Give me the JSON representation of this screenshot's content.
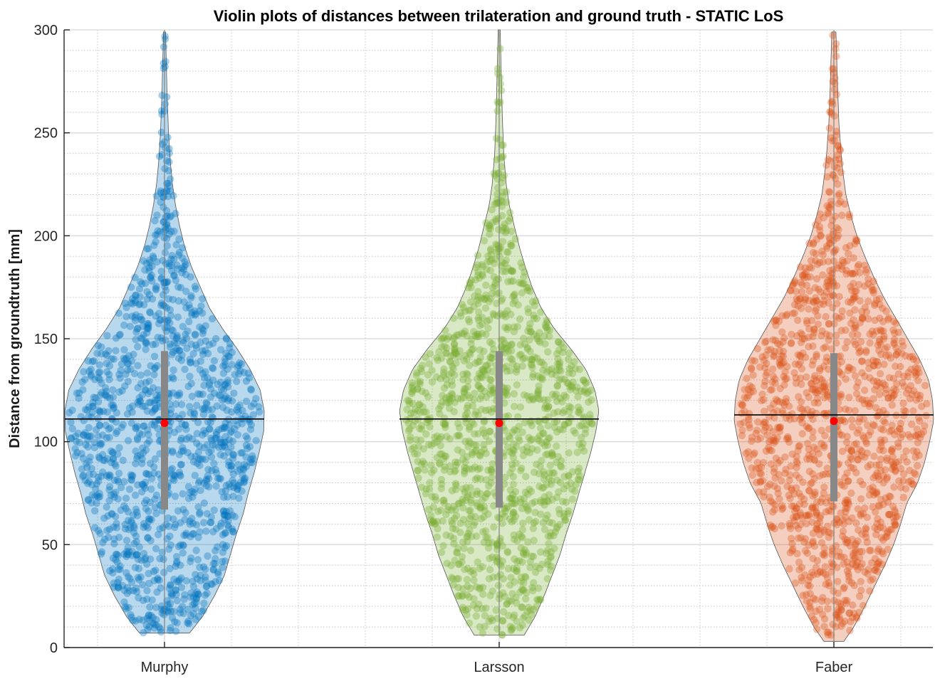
{
  "chart_data": {
    "type": "violin",
    "title": "Violin plots of distances between trilateration and ground truth - STATIC LoS",
    "ylabel": "Distance from groundtruth [mm]",
    "xlabel": "",
    "ylim": [
      0,
      300
    ],
    "yticks": [
      0,
      50,
      100,
      150,
      200,
      250,
      300
    ],
    "grid": true,
    "minor_grid": true,
    "categories": [
      "Murphy",
      "Larsson",
      "Faber"
    ],
    "series": [
      {
        "name": "Murphy",
        "color": "#0072BD",
        "mean": 111,
        "median": 109,
        "q1": 67,
        "q3": 144,
        "min": 7,
        "max": 300,
        "density": [
          [
            7,
            0.25
          ],
          [
            15,
            0.38
          ],
          [
            25,
            0.5
          ],
          [
            35,
            0.6
          ],
          [
            45,
            0.66
          ],
          [
            55,
            0.72
          ],
          [
            65,
            0.79
          ],
          [
            75,
            0.84
          ],
          [
            85,
            0.9
          ],
          [
            95,
            0.95
          ],
          [
            105,
            0.995
          ],
          [
            115,
            1.0
          ],
          [
            125,
            0.96
          ],
          [
            135,
            0.86
          ],
          [
            145,
            0.73
          ],
          [
            155,
            0.58
          ],
          [
            165,
            0.45
          ],
          [
            175,
            0.36
          ],
          [
            185,
            0.27
          ],
          [
            195,
            0.2
          ],
          [
            205,
            0.15
          ],
          [
            215,
            0.11
          ],
          [
            225,
            0.08
          ],
          [
            235,
            0.06
          ],
          [
            250,
            0.04
          ],
          [
            270,
            0.025
          ],
          [
            290,
            0.015
          ],
          [
            300,
            0.01
          ]
        ]
      },
      {
        "name": "Larsson",
        "color": "#77AC30",
        "mean": 111,
        "median": 109,
        "q1": 68,
        "q3": 144,
        "min": 6,
        "max": 300,
        "density": [
          [
            6,
            0.25
          ],
          [
            15,
            0.36
          ],
          [
            25,
            0.45
          ],
          [
            35,
            0.53
          ],
          [
            45,
            0.61
          ],
          [
            55,
            0.67
          ],
          [
            65,
            0.74
          ],
          [
            75,
            0.8
          ],
          [
            85,
            0.86
          ],
          [
            95,
            0.92
          ],
          [
            105,
            0.97
          ],
          [
            115,
            1.0
          ],
          [
            125,
            0.96
          ],
          [
            135,
            0.87
          ],
          [
            145,
            0.72
          ],
          [
            155,
            0.55
          ],
          [
            165,
            0.42
          ],
          [
            175,
            0.33
          ],
          [
            185,
            0.26
          ],
          [
            195,
            0.2
          ],
          [
            205,
            0.15
          ],
          [
            215,
            0.1
          ],
          [
            225,
            0.07
          ],
          [
            240,
            0.045
          ],
          [
            260,
            0.03
          ],
          [
            280,
            0.02
          ],
          [
            300,
            0.01
          ]
        ]
      },
      {
        "name": "Faber",
        "color": "#D95319",
        "mean": 113,
        "median": 110,
        "q1": 71,
        "q3": 143,
        "min": 3,
        "max": 300,
        "density": [
          [
            3,
            0.1
          ],
          [
            10,
            0.2
          ],
          [
            20,
            0.31
          ],
          [
            30,
            0.41
          ],
          [
            40,
            0.51
          ],
          [
            50,
            0.6
          ],
          [
            60,
            0.67
          ],
          [
            70,
            0.73
          ],
          [
            80,
            0.84
          ],
          [
            90,
            0.91
          ],
          [
            100,
            0.96
          ],
          [
            110,
            1.0
          ],
          [
            120,
            0.99
          ],
          [
            130,
            0.95
          ],
          [
            140,
            0.86
          ],
          [
            150,
            0.74
          ],
          [
            160,
            0.62
          ],
          [
            170,
            0.5
          ],
          [
            180,
            0.4
          ],
          [
            190,
            0.31
          ],
          [
            200,
            0.23
          ],
          [
            210,
            0.17
          ],
          [
            220,
            0.12
          ],
          [
            235,
            0.08
          ],
          [
            255,
            0.05
          ],
          [
            275,
            0.035
          ],
          [
            300,
            0.02
          ]
        ]
      }
    ]
  }
}
